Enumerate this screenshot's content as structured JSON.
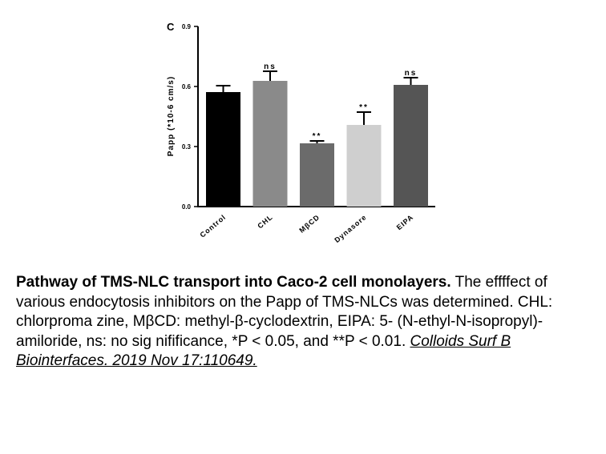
{
  "chart_data": {
    "type": "bar",
    "panel_label": "C",
    "ylabel": "Papp (*10-6 cm/s)",
    "categories": [
      "Control",
      "CHL",
      "MβCD",
      "Dynasore",
      "EIPA"
    ],
    "values": [
      0.572,
      0.628,
      0.316,
      0.408,
      0.608
    ],
    "errors": [
      0.032,
      0.048,
      0.012,
      0.064,
      0.036
    ],
    "colors": [
      "#000000",
      "#8a8a8a",
      "#6b6b6b",
      "#cfcfcf",
      "#555555"
    ],
    "annotations": [
      null,
      "ns",
      "**",
      "**",
      "ns"
    ],
    "ylim": [
      0,
      0.9
    ],
    "yticks": [
      {
        "value": 0,
        "label": "0.0"
      },
      0.3,
      0.6,
      0.9
    ]
  },
  "caption": {
    "title": "Pathway of TMS-NLC transport into Caco-2 cell monolayers.",
    "text": "The effffect of various endocytosis inhibitors on the Papp of TMS-NLCs was determined. CHL: chlorproma zine, MβCD: methyl-β-cyclodextrin, EIPA: 5- (N-ethyl-N-isopropyl)-amiloride, ns: no sig nifificance, *P < 0.05, and **P < 0.01.",
    "citation": "Colloids Surf B Biointerfaces. 2019 Nov 17:110649."
  }
}
